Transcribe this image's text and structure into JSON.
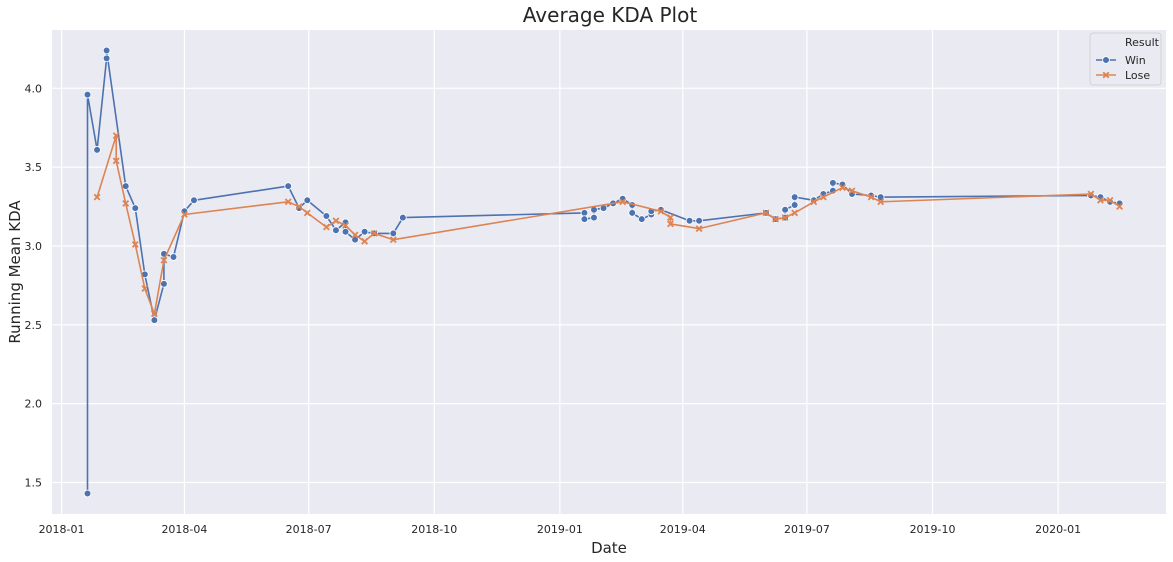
{
  "chart_data": {
    "type": "line",
    "title": "Average KDA Plot",
    "xlabel": "Date",
    "ylabel": "Running Mean KDA",
    "x_axis_kind": "date",
    "xlim": [
      "2017-12-25",
      "2020-03-20"
    ],
    "ylim": [
      1.3,
      4.37
    ],
    "xticks": [
      {
        "value": "2018-01-01",
        "label": "2018-01"
      },
      {
        "value": "2018-04-01",
        "label": "2018-04"
      },
      {
        "value": "2018-07-01",
        "label": "2018-07"
      },
      {
        "value": "2018-10-01",
        "label": "2018-10"
      },
      {
        "value": "2019-01-01",
        "label": "2019-01"
      },
      {
        "value": "2019-04-01",
        "label": "2019-04"
      },
      {
        "value": "2019-07-01",
        "label": "2019-07"
      },
      {
        "value": "2019-10-01",
        "label": "2019-10"
      },
      {
        "value": "2020-01-01",
        "label": "2020-01"
      }
    ],
    "yticks": [
      1.5,
      2.0,
      2.5,
      3.0,
      3.5,
      4.0
    ],
    "grid": true,
    "background_color": "#eaeaf2",
    "legend": {
      "title": "Result",
      "position": "top-right"
    },
    "series": [
      {
        "name": "Win",
        "color": "#4c72b0",
        "marker": "circle",
        "points": [
          [
            "2018-01-20",
            1.43
          ],
          [
            "2018-01-20",
            3.96
          ],
          [
            "2018-01-27",
            3.61
          ],
          [
            "2018-02-03",
            4.19
          ],
          [
            "2018-02-03",
            4.24
          ],
          [
            "2018-02-17",
            3.38
          ],
          [
            "2018-02-24",
            3.24
          ],
          [
            "2018-03-03",
            2.82
          ],
          [
            "2018-03-10",
            2.53
          ],
          [
            "2018-03-17",
            2.76
          ],
          [
            "2018-03-17",
            2.95
          ],
          [
            "2018-03-24",
            2.93
          ],
          [
            "2018-04-01",
            3.22
          ],
          [
            "2018-04-08",
            3.29
          ],
          [
            "2018-06-16",
            3.38
          ],
          [
            "2018-06-24",
            3.24
          ],
          [
            "2018-06-30",
            3.29
          ],
          [
            "2018-07-14",
            3.19
          ],
          [
            "2018-07-21",
            3.1
          ],
          [
            "2018-07-28",
            3.15
          ],
          [
            "2018-07-28",
            3.09
          ],
          [
            "2018-08-04",
            3.04
          ],
          [
            "2018-08-11",
            3.09
          ],
          [
            "2018-08-18",
            3.08
          ],
          [
            "2018-09-01",
            3.08
          ],
          [
            "2018-09-08",
            3.18
          ],
          [
            "2019-01-19",
            3.21
          ],
          [
            "2019-01-19",
            3.17
          ],
          [
            "2019-01-26",
            3.18
          ],
          [
            "2019-01-26",
            3.23
          ],
          [
            "2019-02-02",
            3.24
          ],
          [
            "2019-02-09",
            3.27
          ],
          [
            "2019-02-16",
            3.3
          ],
          [
            "2019-02-23",
            3.26
          ],
          [
            "2019-02-23",
            3.21
          ],
          [
            "2019-03-02",
            3.17
          ],
          [
            "2019-03-09",
            3.2
          ],
          [
            "2019-03-09",
            3.22
          ],
          [
            "2019-03-16",
            3.23
          ],
          [
            "2019-04-06",
            3.16
          ],
          [
            "2019-04-13",
            3.16
          ],
          [
            "2019-06-01",
            3.21
          ],
          [
            "2019-06-08",
            3.17
          ],
          [
            "2019-06-15",
            3.18
          ],
          [
            "2019-06-15",
            3.23
          ],
          [
            "2019-06-22",
            3.26
          ],
          [
            "2019-06-22",
            3.31
          ],
          [
            "2019-07-06",
            3.29
          ],
          [
            "2019-07-13",
            3.33
          ],
          [
            "2019-07-20",
            3.35
          ],
          [
            "2019-07-20",
            3.4
          ],
          [
            "2019-07-27",
            3.39
          ],
          [
            "2019-08-03",
            3.33
          ],
          [
            "2019-08-17",
            3.32
          ],
          [
            "2019-08-24",
            3.31
          ],
          [
            "2020-01-25",
            3.32
          ],
          [
            "2020-02-01",
            3.31
          ],
          [
            "2020-02-08",
            3.28
          ],
          [
            "2020-02-15",
            3.27
          ]
        ]
      },
      {
        "name": "Lose",
        "color": "#dd8452",
        "marker": "x",
        "points": [
          [
            "2018-01-27",
            3.31
          ],
          [
            "2018-02-10",
            3.7
          ],
          [
            "2018-02-10",
            3.54
          ],
          [
            "2018-02-17",
            3.27
          ],
          [
            "2018-02-24",
            3.01
          ],
          [
            "2018-03-03",
            2.73
          ],
          [
            "2018-03-10",
            2.57
          ],
          [
            "2018-03-17",
            2.91
          ],
          [
            "2018-04-01",
            3.2
          ],
          [
            "2018-06-16",
            3.28
          ],
          [
            "2018-06-24",
            3.25
          ],
          [
            "2018-06-30",
            3.21
          ],
          [
            "2018-07-14",
            3.12
          ],
          [
            "2018-07-21",
            3.16
          ],
          [
            "2018-07-28",
            3.13
          ],
          [
            "2018-08-04",
            3.07
          ],
          [
            "2018-08-11",
            3.03
          ],
          [
            "2018-08-18",
            3.08
          ],
          [
            "2018-09-01",
            3.04
          ],
          [
            "2019-02-16",
            3.28
          ],
          [
            "2019-03-16",
            3.22
          ],
          [
            "2019-03-23",
            3.18
          ],
          [
            "2019-03-23",
            3.14
          ],
          [
            "2019-04-13",
            3.11
          ],
          [
            "2019-06-01",
            3.21
          ],
          [
            "2019-06-08",
            3.17
          ],
          [
            "2019-06-15",
            3.18
          ],
          [
            "2019-06-22",
            3.21
          ],
          [
            "2019-07-06",
            3.28
          ],
          [
            "2019-07-13",
            3.31
          ],
          [
            "2019-07-27",
            3.37
          ],
          [
            "2019-08-03",
            3.35
          ],
          [
            "2019-08-17",
            3.31
          ],
          [
            "2019-08-24",
            3.28
          ],
          [
            "2020-01-25",
            3.33
          ],
          [
            "2020-02-01",
            3.29
          ],
          [
            "2020-02-08",
            3.29
          ],
          [
            "2020-02-15",
            3.25
          ]
        ]
      }
    ]
  }
}
